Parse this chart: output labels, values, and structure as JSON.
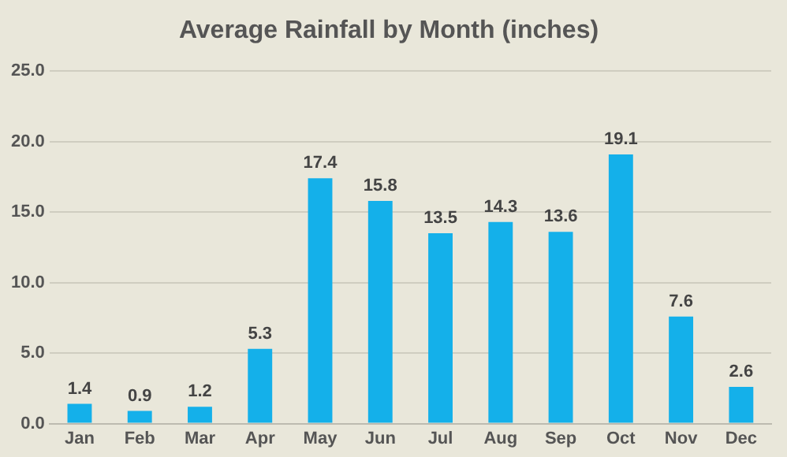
{
  "chart_data": {
    "type": "bar",
    "title": "Average Rainfall by Month (inches)",
    "categories": [
      "Jan",
      "Feb",
      "Mar",
      "Apr",
      "May",
      "Jun",
      "Jul",
      "Aug",
      "Sep",
      "Oct",
      "Nov",
      "Dec"
    ],
    "values": [
      1.4,
      0.9,
      1.2,
      5.3,
      17.4,
      15.8,
      13.5,
      14.3,
      13.6,
      19.1,
      7.6,
      2.6
    ],
    "color": "#14b0ea",
    "ylim": [
      0,
      25
    ],
    "yticks": [
      {
        "value": 0,
        "label": "0.0"
      },
      {
        "value": 5,
        "label": "5.0"
      },
      {
        "value": 10,
        "label": "10.0"
      },
      {
        "value": 15,
        "label": "15.0"
      },
      {
        "value": 20,
        "label": "20.0"
      },
      {
        "value": 25,
        "label": "25.0"
      }
    ],
    "grid": "y",
    "data_labels": true
  }
}
